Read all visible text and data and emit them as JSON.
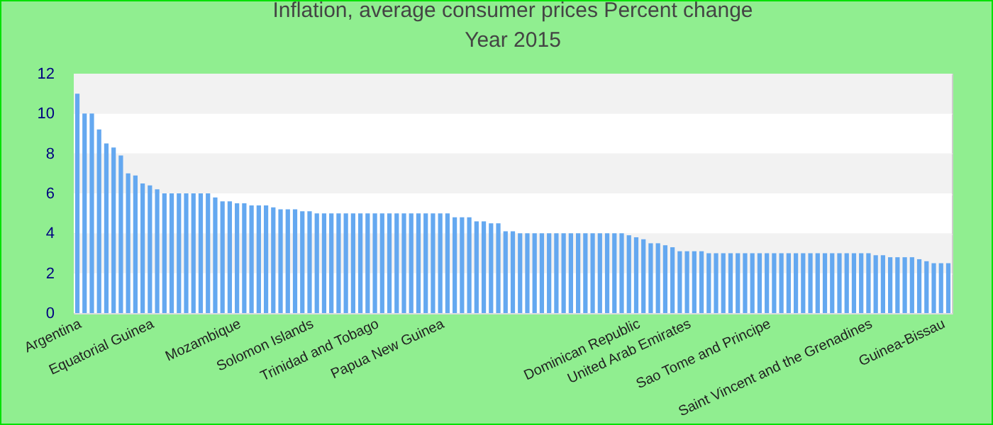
{
  "chart_data": {
    "type": "bar",
    "title": "Inflation, average consumer prices  Percent change",
    "subtitle": "Year 2015",
    "categories": [
      "Argentina",
      null,
      null,
      null,
      null,
      null,
      null,
      null,
      null,
      null,
      "Equatorial Guinea",
      null,
      null,
      null,
      null,
      null,
      null,
      null,
      null,
      null,
      null,
      null,
      "Mozambique",
      null,
      null,
      null,
      null,
      null,
      null,
      null,
      null,
      null,
      "Solomon Islands",
      null,
      null,
      null,
      null,
      null,
      null,
      null,
      null,
      "Trinidad and Tobago",
      null,
      null,
      null,
      null,
      null,
      null,
      null,
      null,
      "Papua New Guinea",
      null,
      null,
      null,
      null,
      null,
      null,
      null,
      null,
      null,
      null,
      null,
      null,
      null,
      null,
      null,
      null,
      null,
      null,
      null,
      null,
      null,
      null,
      null,
      null,
      null,
      null,
      "Dominican Republic",
      null,
      null,
      null,
      null,
      null,
      null,
      "United Arab Emirates",
      null,
      null,
      null,
      null,
      null,
      null,
      null,
      null,
      null,
      null,
      "Sao Tome and Principe",
      null,
      null,
      null,
      null,
      null,
      null,
      null,
      null,
      null,
      null,
      null,
      null,
      null,
      "Saint Vincent and the Grenadines",
      null,
      null,
      null,
      null,
      null,
      null,
      null,
      null,
      null,
      "Guinea-Bissau",
      null
    ],
    "values": [
      11.0,
      10.0,
      10.0,
      9.2,
      8.5,
      8.3,
      7.9,
      7.0,
      6.9,
      6.5,
      6.4,
      6.2,
      6.0,
      6.0,
      6.0,
      6.0,
      6.0,
      6.0,
      6.0,
      5.8,
      5.6,
      5.6,
      5.5,
      5.5,
      5.4,
      5.4,
      5.4,
      5.3,
      5.2,
      5.2,
      5.2,
      5.1,
      5.1,
      5.0,
      5.0,
      5.0,
      5.0,
      5.0,
      5.0,
      5.0,
      5.0,
      5.0,
      5.0,
      5.0,
      5.0,
      5.0,
      5.0,
      5.0,
      5.0,
      5.0,
      5.0,
      5.0,
      4.8,
      4.8,
      4.8,
      4.6,
      4.6,
      4.5,
      4.5,
      4.1,
      4.1,
      4.0,
      4.0,
      4.0,
      4.0,
      4.0,
      4.0,
      4.0,
      4.0,
      4.0,
      4.0,
      4.0,
      4.0,
      4.0,
      4.0,
      4.0,
      3.9,
      3.8,
      3.7,
      3.5,
      3.5,
      3.4,
      3.3,
      3.1,
      3.1,
      3.1,
      3.1,
      3.0,
      3.0,
      3.0,
      3.0,
      3.0,
      3.0,
      3.0,
      3.0,
      3.0,
      3.0,
      3.0,
      3.0,
      3.0,
      3.0,
      3.0,
      3.0,
      3.0,
      3.0,
      3.0,
      3.0,
      3.0,
      3.0,
      3.0,
      2.9,
      2.9,
      2.8,
      2.8,
      2.8,
      2.8,
      2.7,
      2.6,
      2.5,
      2.5,
      2.5
    ],
    "color": "#64a8f0",
    "ylim": [
      0,
      12
    ],
    "yticks": [
      0,
      2,
      4,
      6,
      8,
      10,
      12
    ],
    "grid": "y"
  }
}
